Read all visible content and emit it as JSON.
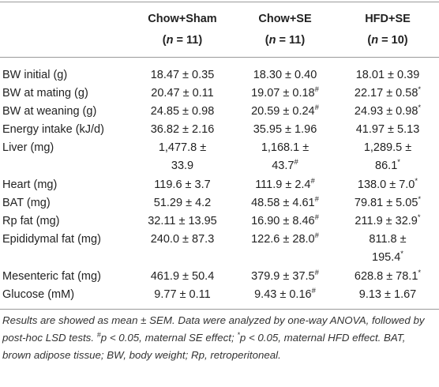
{
  "table": {
    "columns": [
      {
        "name": "Chow+Sham",
        "sample": [
          "(",
          "n",
          " = 11)"
        ]
      },
      {
        "name": "Chow+SE",
        "sample": [
          "(",
          "n",
          " = 11)"
        ]
      },
      {
        "name": "HFD+SE",
        "sample": [
          "(",
          "n",
          " = 10)"
        ]
      }
    ],
    "rows": [
      {
        "label": "BW initial (g)",
        "cells": [
          {
            "lines": [
              "18.47 ± 0.35"
            ]
          },
          {
            "lines": [
              "18.30 ± 0.40"
            ]
          },
          {
            "lines": [
              "18.01 ± 0.39"
            ]
          }
        ]
      },
      {
        "label": "BW at mating (g)",
        "cells": [
          {
            "lines": [
              "20.47 ± 0.11"
            ]
          },
          {
            "lines": [
              "19.07 ± 0.18"
            ],
            "sup": "#"
          },
          {
            "lines": [
              "22.17 ± 0.58"
            ],
            "sup": "*"
          }
        ]
      },
      {
        "label": "BW at weaning (g)",
        "cells": [
          {
            "lines": [
              "24.85 ± 0.98"
            ]
          },
          {
            "lines": [
              "20.59 ± 0.24"
            ],
            "sup": "#"
          },
          {
            "lines": [
              "24.93 ± 0.98"
            ],
            "sup": "*"
          }
        ]
      },
      {
        "label": "Energy intake (kJ/d)",
        "cells": [
          {
            "lines": [
              "36.82 ± 2.16"
            ]
          },
          {
            "lines": [
              "35.95 ± 1.96"
            ]
          },
          {
            "lines": [
              "41.97 ± 5.13"
            ]
          }
        ]
      },
      {
        "label": "Liver (mg)",
        "cells": [
          {
            "lines": [
              "1,477.8 ±",
              "33.9"
            ]
          },
          {
            "lines": [
              "1,168.1 ±",
              "43.7"
            ],
            "sup": "#"
          },
          {
            "lines": [
              "1,289.5 ±",
              "86.1"
            ],
            "sup": "*"
          }
        ]
      },
      {
        "label": "Heart (mg)",
        "cells": [
          {
            "lines": [
              "119.6 ± 3.7"
            ]
          },
          {
            "lines": [
              "111.9 ± 2.4"
            ],
            "sup": "#"
          },
          {
            "lines": [
              "138.0 ± 7.0"
            ],
            "sup": "*"
          }
        ]
      },
      {
        "label": "BAT (mg)",
        "cells": [
          {
            "lines": [
              "51.29 ± 4.2"
            ]
          },
          {
            "lines": [
              "48.58 ± 4.61"
            ],
            "sup": "#"
          },
          {
            "lines": [
              "79.81 ± 5.05"
            ],
            "sup": "*"
          }
        ]
      },
      {
        "label": "Rp fat (mg)",
        "cells": [
          {
            "lines": [
              "32.11 ± 13.95"
            ]
          },
          {
            "lines": [
              "16.90 ± 8.46"
            ],
            "sup": "#"
          },
          {
            "lines": [
              "211.9 ± 32.9"
            ],
            "sup": "*"
          }
        ]
      },
      {
        "label": "Epididymal fat (mg)",
        "cells": [
          {
            "lines": [
              "240.0 ± 87.3"
            ]
          },
          {
            "lines": [
              "122.6 ± 28.0"
            ],
            "sup": "#"
          },
          {
            "lines": [
              "811.8 ±",
              "195.4"
            ],
            "sup": "*"
          }
        ]
      },
      {
        "label": "Mesenteric fat (mg)",
        "cells": [
          {
            "lines": [
              "461.9 ± 50.4"
            ]
          },
          {
            "lines": [
              "379.9 ± 37.5"
            ],
            "sup": "#"
          },
          {
            "lines": [
              "628.8 ± 78.1"
            ],
            "sup": "*"
          }
        ]
      },
      {
        "label": "Glucose (mM)",
        "cells": [
          {
            "lines": [
              "9.77 ± 0.11"
            ]
          },
          {
            "lines": [
              "9.43 ± 0.16"
            ],
            "sup": "#"
          },
          {
            "lines": [
              "9.13 ± 1.67"
            ]
          }
        ]
      }
    ]
  },
  "footnote": [
    {
      "text": "Results are showed as mean ± SEM. Data were analyzed by one-way ANOVA, followed by post-hoc LSD tests. "
    },
    {
      "sup": "#"
    },
    {
      "text": "p < 0.05, maternal SE effect; "
    },
    {
      "sup": "*"
    },
    {
      "text": "p < 0.05, maternal HFD effect. BAT, brown adipose tissue; BW, body weight; Rp, retroperitoneal."
    }
  ]
}
